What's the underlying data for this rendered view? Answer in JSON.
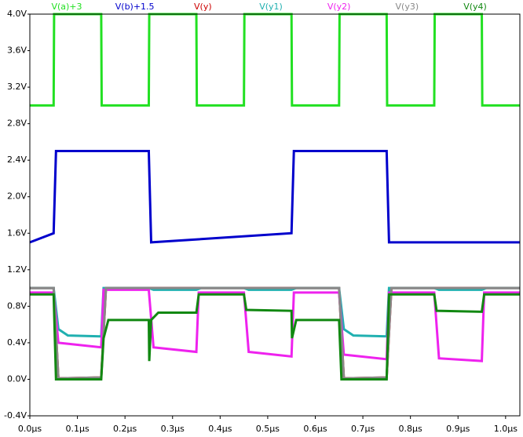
{
  "chart_data": {
    "type": "line",
    "xlim": [
      0,
      1.03
    ],
    "ylim": [
      -0.4,
      4.0
    ],
    "xticks": [
      {
        "value": 0,
        "label": "0.0µs"
      },
      {
        "value": 0.1,
        "label": "0.1µs"
      },
      {
        "value": 0.2,
        "label": "0.2µs"
      },
      {
        "value": 0.3,
        "label": "0.3µs"
      },
      {
        "value": 0.4,
        "label": "0.4µs"
      },
      {
        "value": 0.5,
        "label": "0.5µs"
      },
      {
        "value": 0.6,
        "label": "0.6µs"
      },
      {
        "value": 0.7,
        "label": "0.7µs"
      },
      {
        "value": 0.8,
        "label": "0.8µs"
      },
      {
        "value": 0.9,
        "label": "0.9µs"
      },
      {
        "value": 1.0,
        "label": "1.0µs"
      }
    ],
    "yticks": [
      {
        "value": 4.0,
        "label": "4.0V"
      },
      {
        "value": 3.6,
        "label": "3.6V"
      },
      {
        "value": 3.2,
        "label": "3.2V"
      },
      {
        "value": 2.8,
        "label": "2.8V"
      },
      {
        "value": 2.4,
        "label": "2.4V"
      },
      {
        "value": 2.0,
        "label": "2.0V"
      },
      {
        "value": 1.6,
        "label": "1.6V"
      },
      {
        "value": 1.2,
        "label": "1.2V"
      },
      {
        "value": 0.8,
        "label": "0.8V"
      },
      {
        "value": 0.4,
        "label": "0.4V"
      },
      {
        "value": 0.0,
        "label": "0.0V"
      },
      {
        "value": -0.4,
        "label": "-0.4V"
      }
    ],
    "grid": false,
    "series": [
      {
        "name": "V(a)+3",
        "color": "#22e022",
        "x": [
          0,
          0.05,
          0.051,
          0.15,
          0.151,
          0.25,
          0.251,
          0.35,
          0.351,
          0.45,
          0.451,
          0.55,
          0.551,
          0.65,
          0.651,
          0.75,
          0.751,
          0.85,
          0.851,
          0.95,
          0.951,
          1.03
        ],
        "values": [
          3,
          3,
          4,
          4,
          3,
          3,
          4,
          4,
          3,
          3,
          4,
          4,
          3,
          3,
          4,
          4,
          3,
          3,
          4,
          4,
          3,
          3
        ]
      },
      {
        "name": "V(b)+1.5",
        "color": "#0000cc",
        "x": [
          0,
          0.05,
          0.055,
          0.25,
          0.255,
          0.55,
          0.555,
          0.75,
          0.755,
          1.03
        ],
        "values": [
          1.5,
          1.6,
          2.5,
          2.5,
          1.5,
          1.6,
          2.5,
          2.5,
          1.5,
          1.5
        ]
      },
      {
        "name": "V(y)",
        "color": "#cc0000",
        "x": [
          0,
          0.05,
          0.06,
          0.15,
          0.16,
          0.65,
          0.66,
          0.75,
          0.76,
          1.03
        ],
        "values": [
          1.0,
          1.0,
          0.01,
          0.02,
          1.0,
          1.0,
          0.01,
          0.02,
          1.0,
          1.0
        ]
      },
      {
        "name": "V(y1)",
        "color": "#20b0b0",
        "x": [
          0,
          0.05,
          0.06,
          0.08,
          0.15,
          0.155,
          0.25,
          0.26,
          0.35,
          0.36,
          0.45,
          0.46,
          0.55,
          0.56,
          0.65,
          0.66,
          0.68,
          0.75,
          0.755,
          0.85,
          0.86,
          0.95,
          0.96,
          1.03
        ],
        "values": [
          1.0,
          1.0,
          0.55,
          0.48,
          0.47,
          1.0,
          1.0,
          0.98,
          0.98,
          1.0,
          1.0,
          0.98,
          0.98,
          1.0,
          1.0,
          0.55,
          0.48,
          0.47,
          1.0,
          1.0,
          0.98,
          0.98,
          1.0,
          1.0
        ]
      },
      {
        "name": "V(y2)",
        "color": "#ee22ee",
        "x": [
          0,
          0.05,
          0.06,
          0.15,
          0.155,
          0.25,
          0.26,
          0.35,
          0.355,
          0.45,
          0.46,
          0.55,
          0.555,
          0.65,
          0.66,
          0.75,
          0.755,
          0.85,
          0.86,
          0.95,
          0.955,
          1.03
        ],
        "values": [
          0.95,
          0.95,
          0.4,
          0.35,
          0.98,
          0.98,
          0.35,
          0.3,
          0.95,
          0.95,
          0.3,
          0.25,
          0.95,
          0.95,
          0.27,
          0.22,
          0.95,
          0.95,
          0.23,
          0.2,
          0.95,
          0.95
        ]
      },
      {
        "name": "V(y3)",
        "color": "#888888",
        "x": [
          0,
          0.05,
          0.06,
          0.15,
          0.16,
          0.65,
          0.66,
          0.75,
          0.76,
          1.03
        ],
        "values": [
          1.0,
          1.0,
          0.01,
          0.02,
          1.0,
          1.0,
          0.01,
          0.02,
          1.0,
          1.0
        ]
      },
      {
        "name": "V(y4)",
        "color": "#118811",
        "x": [
          0,
          0.05,
          0.055,
          0.15,
          0.155,
          0.165,
          0.25,
          0.251,
          0.255,
          0.27,
          0.35,
          0.355,
          0.45,
          0.455,
          0.55,
          0.551,
          0.56,
          0.65,
          0.655,
          0.75,
          0.755,
          0.85,
          0.855,
          0.95,
          0.955,
          1.03
        ],
        "values": [
          0.93,
          0.93,
          0.0,
          0.0,
          0.45,
          0.65,
          0.65,
          0.2,
          0.65,
          0.73,
          0.73,
          0.93,
          0.93,
          0.76,
          0.75,
          0.45,
          0.65,
          0.65,
          0.0,
          0.0,
          0.93,
          0.93,
          0.75,
          0.74,
          0.93,
          0.93
        ]
      }
    ]
  }
}
